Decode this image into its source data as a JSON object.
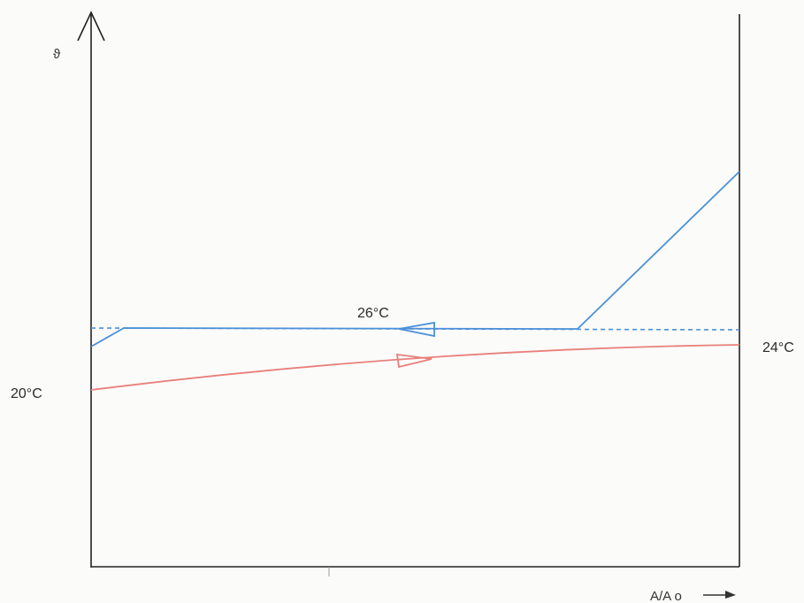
{
  "axes": {
    "y_title": "ϑ",
    "x_title": "A/A o"
  },
  "labels": {
    "hot_stream_temperature": "26°C",
    "cold_inlet_temperature": "20°C",
    "cold_outlet_temperature": "24°C"
  },
  "colors": {
    "hot_stream": "#4a90d9",
    "cold_stream": "#e8807a",
    "axis": "#222222",
    "reference_dashed": "#4a90d9"
  }
}
